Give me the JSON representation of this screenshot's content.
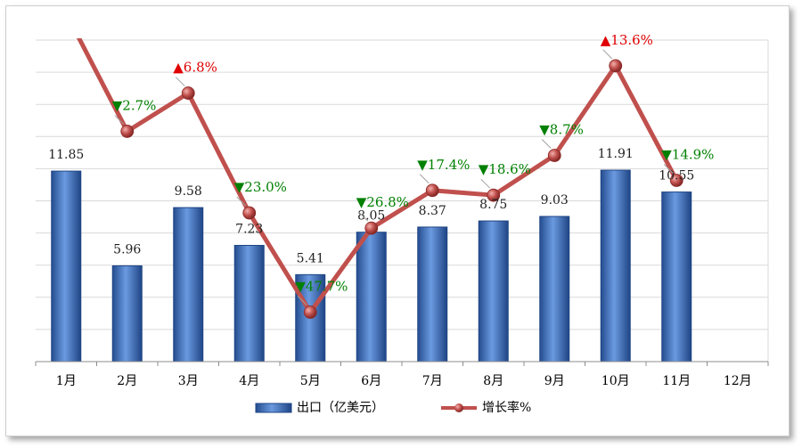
{
  "chart_data": {
    "type": "bar+line",
    "categories": [
      "1月",
      "2月",
      "3月",
      "4月",
      "5月",
      "6月",
      "7月",
      "8月",
      "9月",
      "10月",
      "11月",
      "12月"
    ],
    "series": [
      {
        "name": "出口（亿美元）",
        "type": "bar",
        "axis": "left",
        "values": [
          11.85,
          5.96,
          9.58,
          7.23,
          5.41,
          8.05,
          8.37,
          8.75,
          9.03,
          11.91,
          10.55,
          null
        ],
        "labels": [
          "11.85",
          "5.96",
          "9.58",
          "7.23",
          "5.41",
          "8.05",
          "8.37",
          "8.75",
          "9.03",
          "11.91",
          "10.55",
          ""
        ]
      },
      {
        "name": "增长率%",
        "type": "line",
        "axis": "right",
        "values": [
          null,
          -2.7,
          6.8,
          -23.0,
          -47.7,
          -26.8,
          -17.4,
          -18.6,
          -8.7,
          13.6,
          -14.9,
          null
        ],
        "labels": [
          "",
          "2.7%",
          "6.8%",
          "23.0%",
          "47.7%",
          "26.8%",
          "17.4%",
          "18.6%",
          "8.7%",
          "13.6%",
          "14.9%",
          ""
        ],
        "direction": [
          "",
          "down",
          "up",
          "down",
          "down",
          "down",
          "down",
          "down",
          "down",
          "up",
          "down",
          ""
        ]
      }
    ],
    "legend": {
      "position": "bottom",
      "bar_label": "出口（亿美元）",
      "line_label": "增长率%"
    },
    "left_axis_range": [
      0,
      20
    ],
    "right_axis_range": [
      -60,
      20
    ],
    "grid": true,
    "colors": {
      "bar": "#3a6fbf",
      "line": "#c0504d",
      "up": "#e00000",
      "down": "#008000",
      "grid": "#d9d9d9"
    }
  }
}
